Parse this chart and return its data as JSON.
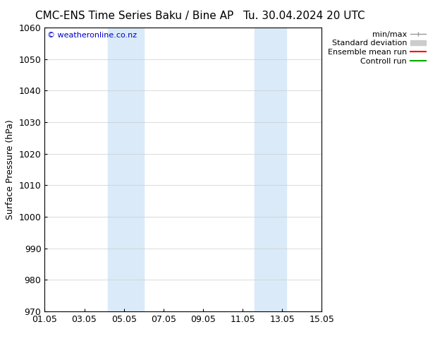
{
  "title_left": "CMC-ENS Time Series Baku / Bine AP",
  "title_right": "Tu. 30.04.2024 20 UTC",
  "ylabel": "Surface Pressure (hPa)",
  "ylim": [
    970,
    1060
  ],
  "yticks": [
    970,
    980,
    990,
    1000,
    1010,
    1020,
    1030,
    1040,
    1050,
    1060
  ],
  "xlim": [
    0,
    14
  ],
  "xtick_positions": [
    0,
    2,
    4,
    6,
    8,
    10,
    12,
    14
  ],
  "xtick_labels": [
    "01.05",
    "03.05",
    "05.05",
    "07.05",
    "09.05",
    "11.05",
    "13.05",
    "15.05"
  ],
  "shaded_bands": [
    {
      "xmin": 3.2,
      "xmax": 5.0
    },
    {
      "xmin": 10.6,
      "xmax": 12.2
    }
  ],
  "band_color": "#daeaf8",
  "background_color": "#ffffff",
  "watermark_text": "© weatheronline.co.nz",
  "watermark_color": "#0000cc",
  "legend_labels": [
    "min/max",
    "Standard deviation",
    "Ensemble mean run",
    "Controll run"
  ],
  "legend_colors": [
    "#999999",
    "#cccccc",
    "#ff0000",
    "#00aa00"
  ],
  "grid_color": "#cccccc",
  "title_fontsize": 11,
  "tick_fontsize": 9,
  "ylabel_fontsize": 9,
  "legend_fontsize": 8
}
